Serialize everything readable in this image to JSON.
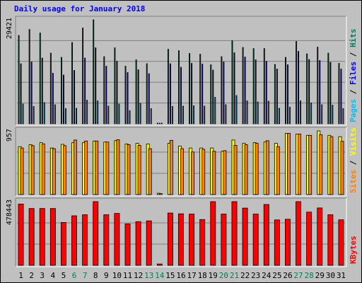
{
  "title": "Daily usage for January 2018",
  "colors": {
    "background": "#c0c0c0",
    "plot": "#c0c0c0",
    "title": "#0000ff",
    "hits": "#00805c",
    "files": "#0000ff",
    "pages": "#00c0ff",
    "visits": "#ffff00",
    "sites": "#ff8000",
    "kbytes": "#ff0000",
    "weekend": "#00805c",
    "weekday": "#000000"
  },
  "chart_data": {
    "type": "bar",
    "title": "Daily usage for January 2018",
    "categories": [
      "1",
      "2",
      "3",
      "4",
      "5",
      "6",
      "7",
      "8",
      "9",
      "10",
      "11",
      "12",
      "13",
      "14",
      "15",
      "16",
      "17",
      "18",
      "19",
      "20",
      "21",
      "22",
      "23",
      "24",
      "25",
      "26",
      "27",
      "28",
      "29",
      "30",
      "31"
    ],
    "weekend_days": [
      "6",
      "7",
      "13",
      "14",
      "20",
      "21",
      "27",
      "28"
    ],
    "panels": [
      {
        "key": "hits_files_pages",
        "max_label": "29421",
        "ylim": [
          0,
          29421
        ],
        "legend": [
          {
            "label": "Pages",
            "color": "#00c0ff"
          },
          {
            "label": "Files",
            "color": "#0000ff"
          },
          {
            "label": "Hits",
            "color": "#00805c"
          }
        ],
        "series": [
          {
            "name": "Hits",
            "values": [
              25000,
              26700,
              25700,
              20000,
              18800,
              23000,
              27100,
              29421,
              19000,
              21500,
              16300,
              18100,
              17000,
              200,
              21100,
              20700,
              19900,
              19700,
              16700,
              19000,
              23500,
              21600,
              21300,
              21300,
              16800,
              18800,
              23300,
              19800,
              21700,
              20000,
              17100
            ]
          },
          {
            "name": "Files",
            "values": [
              17000,
              17500,
              18600,
              14300,
              13800,
              15100,
              18600,
              21500,
              16300,
              17700,
              14500,
              15300,
              14200,
              200,
              17000,
              16000,
              17100,
              16900,
              15200,
              17500,
              20100,
              18900,
              18100,
              17700,
              15500,
              16700,
              20500,
              18200,
              17900,
              17400,
              15500
            ]
          },
          {
            "name": "Pages",
            "values": [
              5600,
              4900,
              6000,
              5400,
              4300,
              4400,
              6700,
              6500,
              5000,
              5600,
              3700,
              5800,
              4300,
              200,
              4900,
              5000,
              5100,
              5000,
              7500,
              5400,
              8000,
              6500,
              6200,
              6400,
              4400,
              4700,
              6500,
              5900,
              5400,
              5300,
              4300
            ]
          }
        ]
      },
      {
        "key": "sites_visits",
        "max_label": "957",
        "ylim": [
          0,
          957
        ],
        "legend": [
          {
            "label": "Sites",
            "color": "#ff8000"
          },
          {
            "label": "Visits",
            "color": "#ffff00"
          }
        ],
        "series": [
          {
            "name": "Visits",
            "values": [
              720,
              750,
              780,
              700,
              755,
              780,
              780,
              805,
              790,
              810,
              760,
              770,
              760,
              20,
              770,
              730,
              700,
              700,
              700,
              650,
              820,
              770,
              780,
              790,
              770,
              920,
              910,
              890,
              957,
              890,
              870
            ]
          },
          {
            "name": "Sites",
            "values": [
              700,
              735,
              760,
              690,
              735,
              820,
              805,
              805,
              790,
              825,
              750,
              740,
              690,
              15,
              815,
              690,
              640,
              680,
              650,
              660,
              740,
              750,
              770,
              810,
              720,
              920,
              910,
              890,
              900,
              870,
              800
            ]
          }
        ]
      },
      {
        "key": "kbytes",
        "max_label": "478443",
        "ylim": [
          0,
          478443
        ],
        "legend": [
          {
            "label": "KBytes",
            "color": "#ff0000"
          }
        ],
        "series": [
          {
            "name": "KBytes",
            "values": [
              460000,
              427000,
              427000,
              427000,
              322000,
              372000,
              380000,
              478443,
              380000,
              390000,
              311000,
              328000,
              334000,
              10000,
              393000,
              387000,
              385000,
              344000,
              478443,
              385000,
              478443,
              430000,
              385000,
              457000,
              341000,
              346000,
              478443,
              400000,
              431000,
              380000,
              342000
            ]
          }
        ]
      }
    ]
  }
}
